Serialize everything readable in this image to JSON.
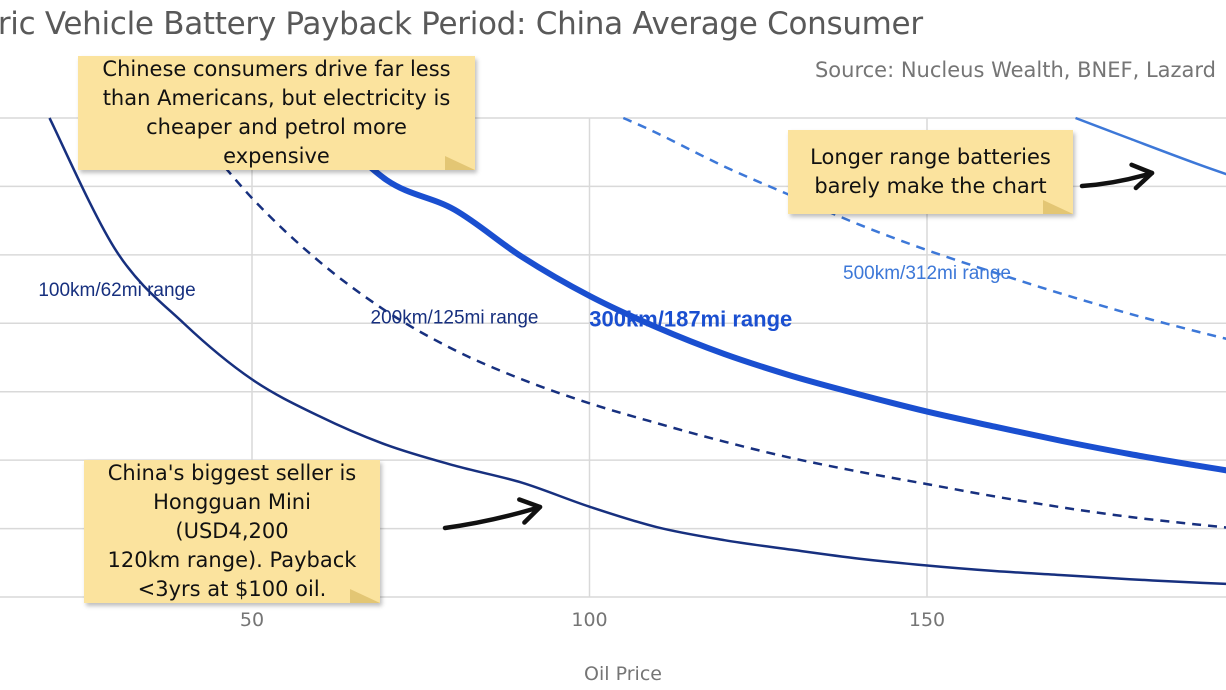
{
  "title": "tric Vehicle Battery Payback Period: China Average Consumer",
  "source": "Source: Nucleus Wealth, BNEF, Lazard",
  "notes": {
    "china": "Chinese consumers drive far less\nthan Americans, but electricity is\ncheaper and petrol more expensive",
    "range": "Longer range batteries\nbarely make the chart",
    "seller": "China's biggest seller is\nHongguan Mini (USD4,200\n120km range). Payback\n<3yrs at $100 oil."
  },
  "colors": {
    "dark_navy": "#17307f",
    "bright_blue": "#1a4fd0",
    "light_blue": "#3d78d8",
    "grid": "#d9d9d9",
    "axis_text": "#757575",
    "note_bg": "#fbe39e"
  },
  "chart_data": {
    "type": "line",
    "xlabel": "Oil Price",
    "ylabel": "",
    "xlim": [
      13,
      197
    ],
    "ylim": [
      0,
      7
    ],
    "x_ticks": [
      50,
      100,
      150
    ],
    "grid": true,
    "series": [
      {
        "name": "100km/62mi range",
        "style": "solid",
        "color": "#17307f",
        "x": [
          20,
          30,
          40,
          50,
          60,
          70,
          80,
          90,
          100,
          110,
          120,
          130,
          140,
          150,
          160,
          170,
          180,
          190,
          197
        ],
        "y": [
          7.0,
          5.04,
          3.99,
          3.18,
          2.64,
          2.22,
          1.92,
          1.67,
          1.32,
          1.02,
          0.83,
          0.69,
          0.56,
          0.46,
          0.38,
          0.32,
          0.26,
          0.21,
          0.18
        ]
      },
      {
        "name": "200km/125mi range",
        "style": "dashed",
        "color": "#17307f",
        "x": [
          40,
          50,
          60,
          70,
          80,
          90,
          100,
          110,
          120,
          130,
          140,
          150,
          160,
          170,
          180,
          190,
          197
        ],
        "y": [
          7.0,
          5.83,
          4.9,
          4.17,
          3.61,
          3.18,
          2.83,
          2.54,
          2.27,
          2.03,
          1.83,
          1.65,
          1.47,
          1.31,
          1.17,
          1.06,
          0.99
        ]
      },
      {
        "name": "300km/187mi range",
        "style": "solid-bold",
        "color": "#1a4fd0",
        "x": [
          60,
          70,
          80,
          90,
          100,
          110,
          120,
          130,
          140,
          150,
          160,
          170,
          180,
          190,
          197
        ],
        "y": [
          7.0,
          6.09,
          5.66,
          4.97,
          4.4,
          3.94,
          3.55,
          3.23,
          2.96,
          2.71,
          2.49,
          2.28,
          2.09,
          1.92,
          1.81
        ]
      },
      {
        "name": "500km/312mi range",
        "style": "dashed",
        "color": "#3d78d8",
        "x": [
          105,
          110,
          120,
          130,
          140,
          150,
          160,
          170,
          180,
          190,
          197
        ],
        "y": [
          7.0,
          6.78,
          6.29,
          5.86,
          5.44,
          5.07,
          4.74,
          4.43,
          4.14,
          3.88,
          3.71
        ]
      },
      {
        "name": "",
        "style": "solid",
        "color": "#3d78d8",
        "x": [
          172,
          180,
          190,
          197
        ],
        "y": [
          7.0,
          6.7,
          6.33,
          6.09
        ]
      }
    ],
    "series_labels": [
      {
        "series": 0,
        "text": "100km/62mi range",
        "x": 30,
        "y": 4.4
      },
      {
        "series": 1,
        "text": "200km/125mi range",
        "x": 80,
        "y": 4.0
      },
      {
        "series": 2,
        "text": "300km/187mi range",
        "x": 115,
        "y": 3.95
      },
      {
        "series": 3,
        "text": "500km/312mi range",
        "x": 150,
        "y": 4.65
      }
    ]
  }
}
